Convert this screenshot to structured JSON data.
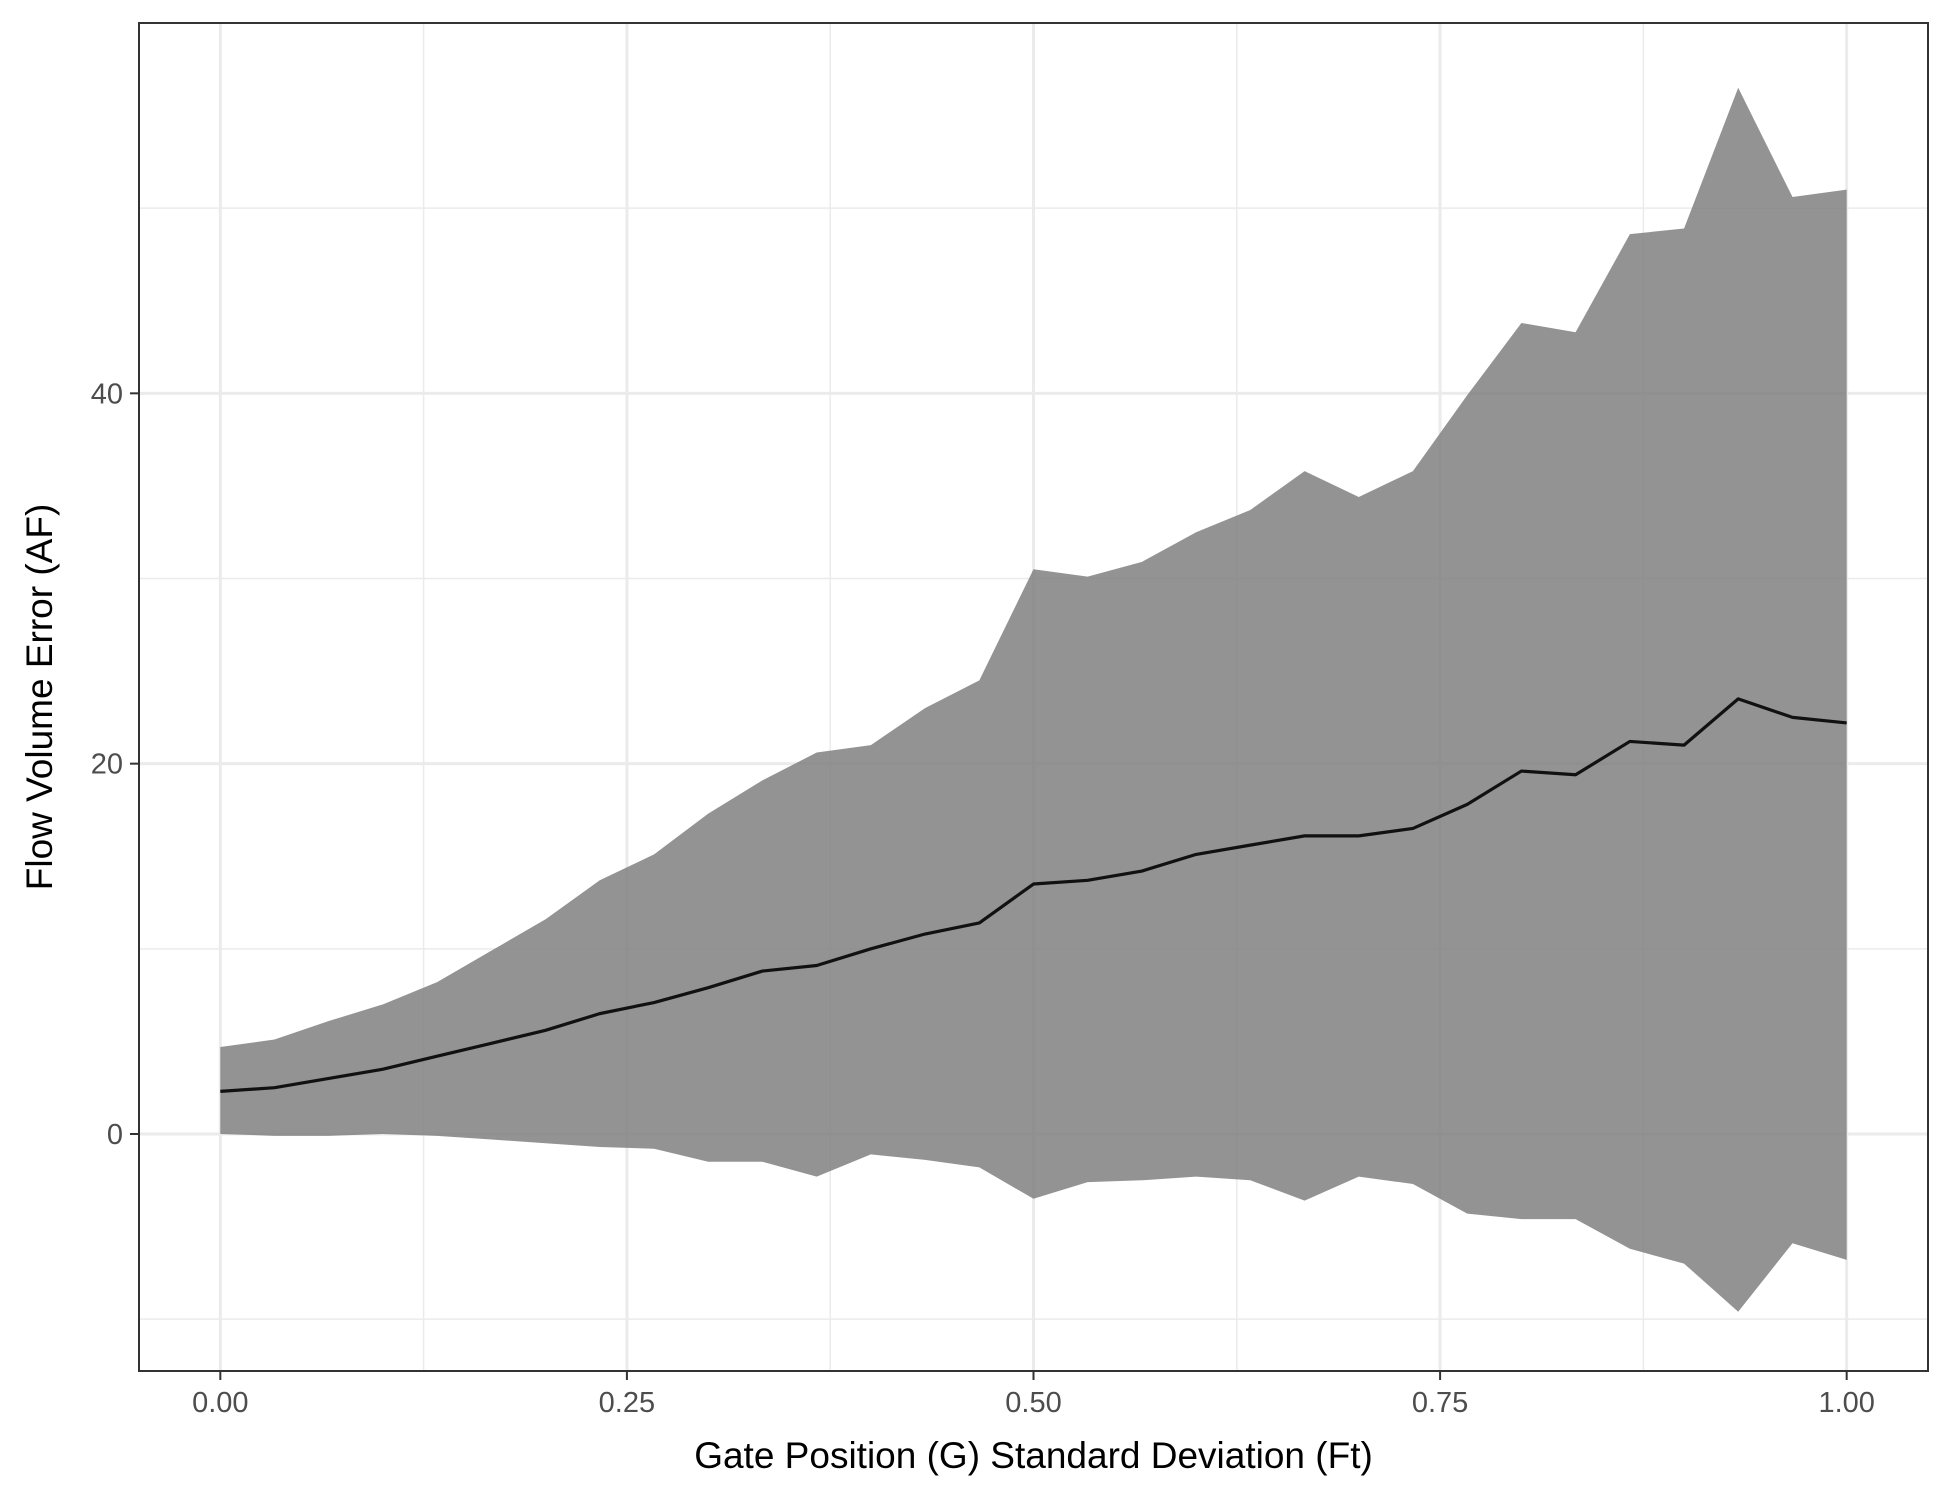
{
  "chart_data": {
    "type": "area",
    "title": "",
    "xlabel": "Gate Position (G) Standard Deviation (Ft)",
    "ylabel": "Flow Volume Error (AF)",
    "xlim": [
      -0.05,
      1.05
    ],
    "ylim": [
      -12.8,
      60
    ],
    "x_ticks": [
      0,
      0.25,
      0.5,
      0.75,
      1
    ],
    "x_tick_labels": [
      "0.00",
      "0.25",
      "0.50",
      "0.75",
      "1.00"
    ],
    "y_ticks": [
      0,
      20,
      40
    ],
    "y_tick_labels": [
      "0",
      "20",
      "40"
    ],
    "x_minor_ticks": [
      0.125,
      0.375,
      0.625,
      0.875
    ],
    "y_minor_ticks": [
      -10,
      10,
      30,
      50
    ],
    "grid": true,
    "legend": "none",
    "colors": {
      "band": "#808080",
      "line": "#111111",
      "grid": "#ebebeb",
      "panel_border": "#333333"
    },
    "x": [
      0,
      0.0333,
      0.0667,
      0.1,
      0.1333,
      0.1667,
      0.2,
      0.2333,
      0.2667,
      0.3,
      0.3333,
      0.3667,
      0.4,
      0.4333,
      0.4667,
      0.5,
      0.5333,
      0.5667,
      0.6,
      0.6333,
      0.6667,
      0.7,
      0.7333,
      0.7667,
      0.8,
      0.8333,
      0.8667,
      0.9,
      0.9333,
      0.9667,
      1.0
    ],
    "series": [
      {
        "values": [
          2.3,
          2.5,
          3.0,
          3.5,
          4.2,
          4.9,
          5.6,
          6.5,
          7.1,
          7.9,
          8.8,
          9.1,
          10.0,
          10.8,
          11.4,
          13.5,
          13.7,
          14.2,
          15.1,
          15.6,
          16.1,
          16.1,
          16.5,
          17.8,
          19.6,
          19.4,
          21.2,
          21.0,
          23.5,
          22.5,
          22.2
        ],
        "lower": [
          0.0,
          -0.1,
          -0.1,
          0.0,
          -0.1,
          -0.3,
          -0.5,
          -0.7,
          -0.8,
          -1.5,
          -1.5,
          -2.3,
          -1.1,
          -1.4,
          -1.8,
          -3.5,
          -2.6,
          -2.5,
          -2.3,
          -2.5,
          -3.6,
          -2.3,
          -2.7,
          -4.3,
          -4.6,
          -4.6,
          -6.2,
          -7.0,
          -9.6,
          -5.9,
          -6.8
        ],
        "upper": [
          4.7,
          5.1,
          6.1,
          7.0,
          8.2,
          9.9,
          11.6,
          13.7,
          15.1,
          17.3,
          19.1,
          20.6,
          21.0,
          23.0,
          24.5,
          30.5,
          30.1,
          30.9,
          32.5,
          33.7,
          35.8,
          34.4,
          35.8,
          39.9,
          43.8,
          43.3,
          48.6,
          48.9,
          56.5,
          50.6,
          51.0
        ]
      }
    ]
  }
}
